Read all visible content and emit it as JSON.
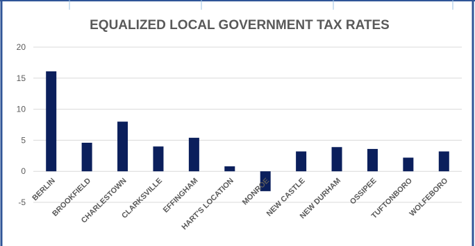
{
  "colors": {
    "frame_border": "#2f5597",
    "bar": "#0b1f5c",
    "gridline": "#d9d9d9",
    "axis_text": "#595959"
  },
  "chart_data": {
    "type": "bar",
    "title": "EQUALIZED LOCAL GOVERNMENT TAX RATES",
    "xlabel": "",
    "ylabel": "",
    "categories": [
      "BERLIN",
      "BROOKFIELD",
      "CHARLESTOWN",
      "CLARKSVILLE",
      "EFFINGHAM",
      "HART'S LOCATION",
      "MONROE",
      "NEW CASTLE",
      "NEW DURHAM",
      "OSSIPEE",
      "TUFTONBORO",
      "WOLFEBORO"
    ],
    "values": [
      16.1,
      4.6,
      8.0,
      4.0,
      5.4,
      0.8,
      -3.2,
      3.2,
      3.9,
      3.6,
      2.2,
      3.2
    ],
    "ylim": [
      -5,
      20
    ],
    "yticks": [
      "20",
      "15",
      "10",
      "5",
      "0",
      "-5"
    ],
    "ytick_values": [
      20,
      15,
      10,
      5,
      0,
      -5
    ],
    "grid": true,
    "legend": "none"
  }
}
